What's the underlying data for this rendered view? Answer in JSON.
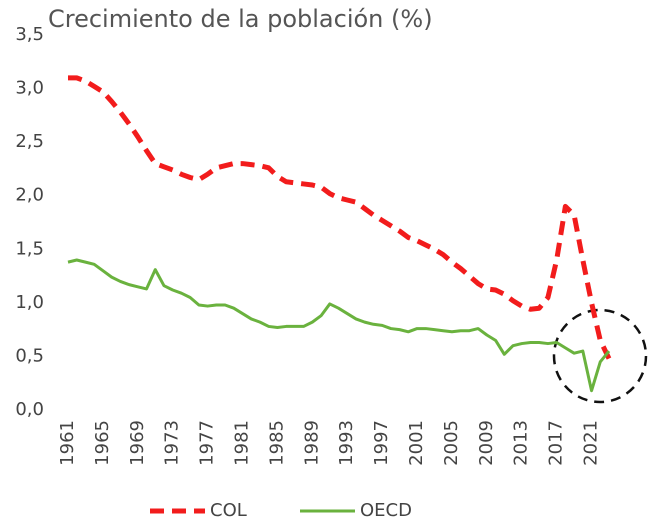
{
  "chart_data": {
    "type": "line",
    "title": "Crecimiento de la población (%)",
    "x": [
      1961,
      1962,
      1963,
      1964,
      1965,
      1966,
      1967,
      1968,
      1969,
      1970,
      1971,
      1972,
      1973,
      1974,
      1975,
      1976,
      1977,
      1978,
      1979,
      1980,
      1981,
      1982,
      1983,
      1984,
      1985,
      1986,
      1987,
      1988,
      1989,
      1990,
      1991,
      1992,
      1993,
      1994,
      1995,
      1996,
      1997,
      1998,
      1999,
      2000,
      2001,
      2002,
      2003,
      2004,
      2005,
      2006,
      2007,
      2008,
      2009,
      2010,
      2011,
      2012,
      2013,
      2014,
      2015,
      2016,
      2017,
      2018,
      2019,
      2020,
      2021,
      2022,
      2023
    ],
    "series": [
      {
        "name": "COL",
        "color": "#f21c1c",
        "dashed": true,
        "values": [
          3.1,
          3.1,
          3.07,
          3.02,
          2.97,
          2.88,
          2.78,
          2.67,
          2.55,
          2.42,
          2.3,
          2.27,
          2.24,
          2.2,
          2.17,
          2.15,
          2.2,
          2.26,
          2.28,
          2.3,
          2.3,
          2.29,
          2.28,
          2.26,
          2.18,
          2.13,
          2.12,
          2.11,
          2.1,
          2.08,
          2.02,
          1.98,
          1.96,
          1.94,
          1.88,
          1.82,
          1.77,
          1.72,
          1.67,
          1.61,
          1.58,
          1.54,
          1.5,
          1.45,
          1.38,
          1.32,
          1.25,
          1.18,
          1.13,
          1.12,
          1.08,
          1.02,
          0.97,
          0.94,
          0.95,
          1.05,
          1.4,
          1.9,
          1.82,
          1.4,
          1.0,
          0.65,
          0.48
        ]
      },
      {
        "name": "OECD",
        "color": "#6ab23e",
        "dashed": false,
        "values": [
          1.38,
          1.4,
          1.38,
          1.36,
          1.3,
          1.24,
          1.2,
          1.17,
          1.15,
          1.13,
          1.31,
          1.16,
          1.12,
          1.09,
          1.05,
          0.98,
          0.97,
          0.98,
          0.98,
          0.95,
          0.9,
          0.85,
          0.82,
          0.78,
          0.77,
          0.78,
          0.78,
          0.78,
          0.82,
          0.88,
          0.99,
          0.95,
          0.9,
          0.85,
          0.82,
          0.8,
          0.79,
          0.76,
          0.75,
          0.73,
          0.76,
          0.76,
          0.75,
          0.74,
          0.73,
          0.74,
          0.74,
          0.76,
          0.7,
          0.65,
          0.52,
          0.6,
          0.62,
          0.63,
          0.63,
          0.62,
          0.63,
          0.58,
          0.53,
          0.55,
          0.18,
          0.45,
          0.55
        ]
      }
    ],
    "xlim": [
      1961,
      2023
    ],
    "xticks": [
      1961,
      1965,
      1969,
      1973,
      1977,
      1981,
      1985,
      1989,
      1993,
      1997,
      2001,
      2005,
      2009,
      2013,
      2017,
      2021
    ],
    "ylim": [
      0,
      3.5
    ],
    "yticks": [
      {
        "value": 0,
        "label": "0,0"
      },
      {
        "value": 0.5,
        "label": "0,5"
      },
      {
        "value": 1,
        "label": "1,0"
      },
      {
        "value": 1.5,
        "label": "1,5"
      },
      {
        "value": 2,
        "label": "2,0"
      },
      {
        "value": 2.5,
        "label": "2,5"
      },
      {
        "value": 3,
        "label": "3,0"
      },
      {
        "value": 3.5,
        "label": "3,5"
      }
    ],
    "grid": false,
    "legend": "bottom"
  }
}
